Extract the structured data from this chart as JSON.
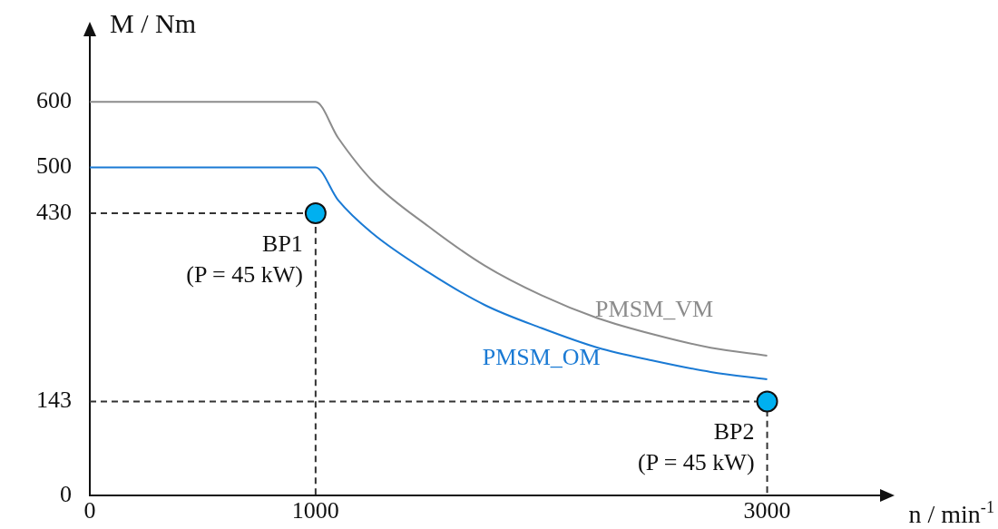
{
  "chart_data": {
    "type": "line",
    "xlabel": "n / min$^{-1}$",
    "ylabel": "M / Nm",
    "xlim": [
      0,
      3500
    ],
    "ylim": [
      0,
      700
    ],
    "xticks": [
      0,
      1000,
      3000
    ],
    "yticks": [
      0,
      143,
      430,
      500,
      600
    ],
    "grid": false,
    "legend": false,
    "marker": "none",
    "x": [
      0,
      1000,
      1100,
      1250,
      1500,
      1750,
      2000,
      2250,
      2500,
      2750,
      3000
    ],
    "series": [
      {
        "name": "PMSM_VM",
        "color": "#8c8c8c",
        "values": [
          600,
          600,
          545,
          480,
          410,
          350,
          305,
          270,
          245,
          225,
          213
        ]
      },
      {
        "name": "PMSM_OM",
        "color": "#1a7ad4",
        "values": [
          500,
          500,
          450,
          400,
          340,
          290,
          255,
          225,
          205,
          188,
          177
        ]
      },
      {
        "type": "line",
        "line_style": "dashed",
        "color": "#333333",
        "x": [
          0,
          1000,
          1000
        ],
        "values": [
          430,
          430,
          0
        ]
      },
      {
        "type": "line",
        "line_style": "dashed",
        "color": "#333333",
        "x": [
          0,
          3000,
          3000
        ],
        "values": [
          143,
          143,
          0
        ]
      },
      {
        "type": "scatter",
        "marker": "circle",
        "color": "#00b0f0",
        "x": [
          1000,
          3000
        ],
        "values": [
          430,
          143
        ]
      }
    ],
    "annotations": [
      {
        "text": "BP1\n(P = 45 kW)",
        "x": 1000,
        "y": 430
      },
      {
        "text": "BP2\n(P = 45 kW)",
        "x": 3000,
        "y": 143
      }
    ]
  }
}
